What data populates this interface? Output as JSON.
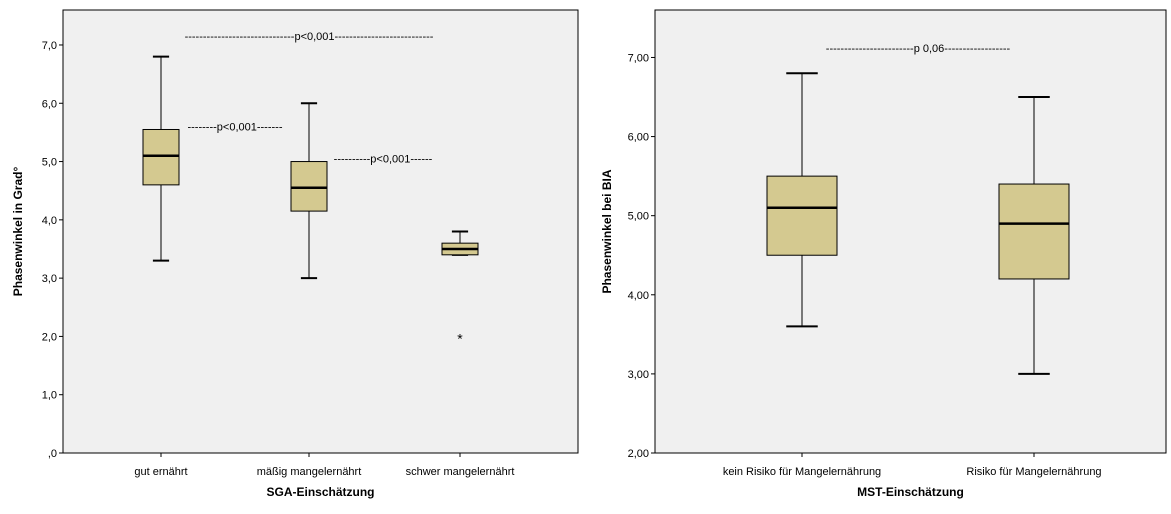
{
  "colors": {
    "panel_bg": "#f0f0f0",
    "box_fill": "#d4c990",
    "line": "#000000"
  },
  "chart_data": [
    {
      "type": "box",
      "xlabel": "SGA-Einschätzung",
      "ylabel": "Phasenwinkel in Grad°",
      "ylim": [
        0,
        7.6
      ],
      "yticks": [
        0,
        1,
        2,
        3,
        4,
        5,
        6,
        7
      ],
      "ytick_labels": [
        ",0",
        "1,0",
        "2,0",
        "3,0",
        "4,0",
        "5,0",
        "6,0",
        "7,0"
      ],
      "grid": false,
      "categories": [
        "gut ernährt",
        "mäßig mangelernährt",
        "schwer mangelernährt"
      ],
      "boxes": [
        {
          "min": 3.3,
          "q1": 4.6,
          "median": 5.1,
          "q3": 5.55,
          "max": 6.8,
          "outliers": []
        },
        {
          "min": 3.0,
          "q1": 4.15,
          "median": 4.55,
          "q3": 5.0,
          "max": 6.0,
          "outliers": []
        },
        {
          "min": 3.4,
          "q1": 3.4,
          "median": 3.5,
          "q3": 3.6,
          "max": 3.8,
          "outliers": [
            2.0
          ]
        }
      ],
      "annotations": [
        {
          "text": "------------------------------p<0,001---------------------------",
          "x_from": 0,
          "x_to": 2,
          "y": 7.15
        },
        {
          "text": "--------p<0,001-------",
          "x_from": 0.5,
          "x_to": 0.5,
          "y": 5.6
        },
        {
          "text": "----------p<0,001------",
          "x_from": 1.5,
          "x_to": 1.5,
          "y": 5.05
        }
      ]
    },
    {
      "type": "box",
      "xlabel": "MST-Einschätzung",
      "ylabel": "Phasenwinkel bei BIA",
      "ylim": [
        2,
        7.6
      ],
      "yticks": [
        2,
        3,
        4,
        5,
        6,
        7
      ],
      "ytick_labels": [
        "2,00",
        "3,00",
        "4,00",
        "5,00",
        "6,00",
        "7,00"
      ],
      "grid": false,
      "categories": [
        "kein Risiko für Mangelernährung",
        "Risiko für Mangelernährung"
      ],
      "boxes": [
        {
          "min": 3.6,
          "q1": 4.5,
          "median": 5.1,
          "q3": 5.5,
          "max": 6.8,
          "outliers": []
        },
        {
          "min": 3.0,
          "q1": 4.2,
          "median": 4.9,
          "q3": 5.4,
          "max": 6.5,
          "outliers": []
        }
      ],
      "annotations": [
        {
          "text": "------------------------p 0,06------------------",
          "x_from": 0,
          "x_to": 1,
          "y": 7.12
        }
      ]
    }
  ]
}
